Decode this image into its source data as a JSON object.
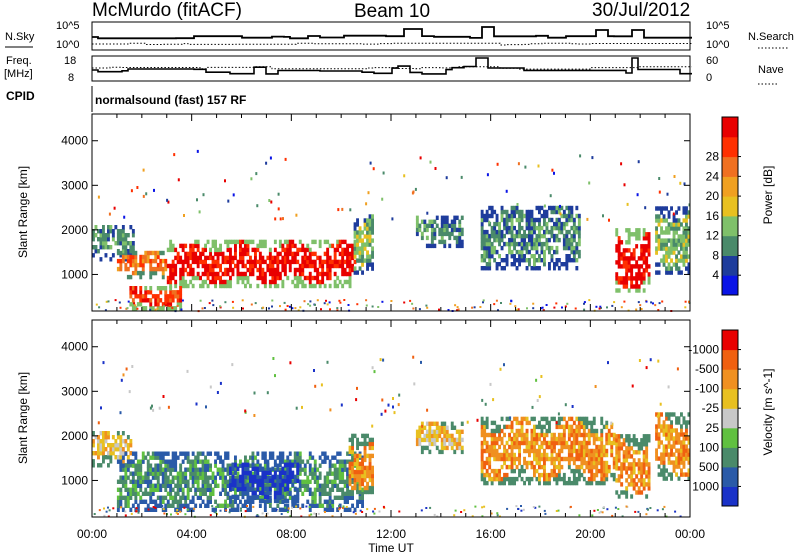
{
  "header": {
    "station": "McMurdo (fitACF)",
    "beam": "Beam 10",
    "date": "30/Jul/2012"
  },
  "summary_panels": {
    "nsky_label": "N.Sky",
    "nsky_ticks": [
      "10^5",
      "10^0"
    ],
    "nsearch_label": "N.Search",
    "nsearch_ticks": [
      "10^5",
      "10^0"
    ],
    "freq_label_line1": "Freq.",
    "freq_label_line2": "[MHz]",
    "freq_ticks": [
      "18",
      "8"
    ],
    "nave_label": "Nave",
    "nave_ticks": [
      "60",
      "0"
    ],
    "cpid_label": "CPID",
    "cpid_text": "normalsound (fast) 157 RF"
  },
  "chart_data": [
    {
      "type": "heatmap",
      "title": "",
      "xlabel": "Time UT",
      "ylabel": "Slant Range [km]",
      "xlim_hours": [
        0,
        24
      ],
      "ylim": [
        180,
        4600
      ],
      "x_ticks": [
        "00:00",
        "04:00",
        "08:00",
        "12:00",
        "16:00",
        "20:00",
        "00:00"
      ],
      "y_ticks": [
        1000,
        2000,
        3000,
        4000
      ],
      "colorbar": {
        "label": "Power [dB]",
        "tick_labels": [
          "4",
          "8",
          "12",
          "16",
          "20",
          "24",
          "28"
        ],
        "colors": [
          "#0a14e6",
          "#1e3c9c",
          "#4a8a6a",
          "#7fc06a",
          "#e8c020",
          "#f0a020",
          "#f07020",
          "#ff3000",
          "#e80000"
        ]
      },
      "regions": [
        {
          "t0": 0.0,
          "t1": 1.7,
          "r0": 1300,
          "r1": 2100,
          "level": 2
        },
        {
          "t0": 1.0,
          "t1": 3.0,
          "r0": 900,
          "r1": 1500,
          "level": 6
        },
        {
          "t0": 3.0,
          "t1": 10.5,
          "r0": 700,
          "r1": 1700,
          "level": 8
        },
        {
          "t0": 1.5,
          "t1": 3.6,
          "r0": 200,
          "r1": 700,
          "level": 7
        },
        {
          "t0": 10.5,
          "t1": 11.2,
          "r0": 1000,
          "r1": 2300,
          "level": 3
        },
        {
          "t0": 13.0,
          "t1": 14.8,
          "r0": 1600,
          "r1": 2300,
          "level": 2
        },
        {
          "t0": 15.6,
          "t1": 19.6,
          "r0": 1100,
          "r1": 2500,
          "level": 2
        },
        {
          "t0": 21.0,
          "t1": 22.4,
          "r0": 600,
          "r1": 2000,
          "level": 8
        },
        {
          "t0": 22.6,
          "t1": 24.0,
          "r0": 1000,
          "r1": 2500,
          "level": 3
        }
      ]
    },
    {
      "type": "heatmap",
      "title": "",
      "xlabel": "Time UT",
      "ylabel": "Slant Range [km]",
      "xlim_hours": [
        0,
        24
      ],
      "ylim": [
        180,
        4600
      ],
      "x_ticks": [
        "00:00",
        "04:00",
        "08:00",
        "12:00",
        "16:00",
        "20:00",
        "00:00"
      ],
      "y_ticks": [
        1000,
        2000,
        3000,
        4000
      ],
      "colorbar": {
        "label": "Velocity [m s^-1]",
        "tick_labels": [
          "1000",
          "500",
          "100",
          "25",
          "-25",
          "-100",
          "-500",
          "-1000"
        ],
        "colors": [
          "#1a32c8",
          "#2a5aa8",
          "#4a8a6a",
          "#60c040",
          "#c8c8c8",
          "#e8c020",
          "#f09020",
          "#f06010",
          "#e80000"
        ]
      },
      "regions": [
        {
          "t0": 0.0,
          "t1": 1.6,
          "r0": 1300,
          "r1": 2100,
          "level": 5
        },
        {
          "t0": 1.0,
          "t1": 10.8,
          "r0": 300,
          "r1": 1600,
          "level": 2
        },
        {
          "t0": 5.5,
          "t1": 8.2,
          "r0": 500,
          "r1": 1400,
          "level": 0
        },
        {
          "t0": 10.3,
          "t1": 11.2,
          "r0": 700,
          "r1": 2000,
          "level": 6
        },
        {
          "t0": 13.0,
          "t1": 14.8,
          "r0": 1600,
          "r1": 2300,
          "level": 5
        },
        {
          "t0": 15.6,
          "t1": 21.0,
          "r0": 900,
          "r1": 2400,
          "level": 6
        },
        {
          "t0": 21.0,
          "t1": 22.4,
          "r0": 600,
          "r1": 2000,
          "level": 6
        },
        {
          "t0": 22.6,
          "t1": 24.0,
          "r0": 1000,
          "r1": 2500,
          "level": 6
        }
      ]
    }
  ]
}
